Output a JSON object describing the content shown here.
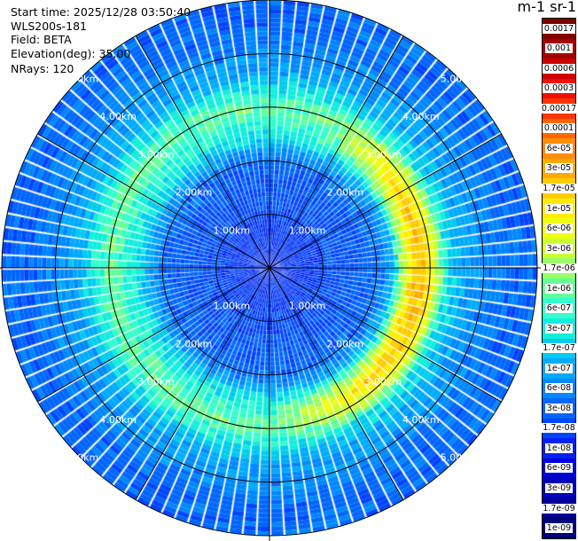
{
  "info": {
    "start_time": "Start time: 2025/12/28 03:50:40",
    "instrument": "WLS200s-181",
    "field": "Field: BETA",
    "elevation": "Elevation(deg): 35.00",
    "nrays": "NRays: 120"
  },
  "colorbar": {
    "title": "m-1 sr-1",
    "levels": [
      {
        "label": "0.0017",
        "color": "#800000"
      },
      {
        "label": "0.001",
        "color": "#a50000"
      },
      {
        "label": "0.0006",
        "color": "#cc0000"
      },
      {
        "label": "0.0003",
        "color": "#ee1100"
      },
      {
        "label": "0.00017",
        "color": "#ff3300"
      },
      {
        "label": "0.0001",
        "color": "#ff6600"
      },
      {
        "label": "6e-05",
        "color": "#ff8c00"
      },
      {
        "label": "3e-05",
        "color": "#ffaa00"
      },
      {
        "label": "1.7e-05",
        "color": "#ffcc00"
      },
      {
        "label": "1e-05",
        "color": "#ffee00"
      },
      {
        "label": "6e-06",
        "color": "#f0ff10"
      },
      {
        "label": "3e-06",
        "color": "#ccff33"
      },
      {
        "label": "1.7e-06",
        "color": "#99ff66"
      },
      {
        "label": "1e-06",
        "color": "#66ff99"
      },
      {
        "label": "6e-07",
        "color": "#33ffcc"
      },
      {
        "label": "3e-07",
        "color": "#11eedd"
      },
      {
        "label": "1.7e-07",
        "color": "#00ccee"
      },
      {
        "label": "1e-07",
        "color": "#00aaff"
      },
      {
        "label": "6e-08",
        "color": "#0088ff"
      },
      {
        "label": "3e-08",
        "color": "#0066ff"
      },
      {
        "label": "1.7e-08",
        "color": "#0044ff"
      },
      {
        "label": "1e-08",
        "color": "#0022ee"
      },
      {
        "label": "6e-09",
        "color": "#0000dd"
      },
      {
        "label": "3e-09",
        "color": "#0000bb"
      },
      {
        "label": "1.7e-09",
        "color": "#000099"
      },
      {
        "label": "1e-09",
        "color": "#000077"
      }
    ]
  },
  "chart_data": {
    "type": "heatmap",
    "projection": "polar-ppi",
    "field": "BETA",
    "units": "m-1 sr-1",
    "elevation_deg": 35.0,
    "n_rays": 120,
    "range_max_km": 5.0,
    "range_rings_km": [
      1,
      2,
      3,
      4,
      5
    ],
    "ring_labels": [
      "1.00km",
      "2.00km",
      "3.00km",
      "4.00km",
      "5.00km"
    ],
    "azimuth_lines_deg": [
      0,
      30,
      60,
      90,
      120,
      150,
      180,
      210,
      240,
      270,
      300,
      330
    ],
    "ring_label_azimuths_deg": [
      45,
      135,
      225,
      315
    ],
    "range_profile": [
      {
        "range_km": 0.0,
        "level": "1e-08"
      },
      {
        "range_km": 1.0,
        "level": "1.7e-08"
      },
      {
        "range_km": 2.0,
        "level": "3e-08"
      },
      {
        "range_km": 2.5,
        "level": "3e-07"
      },
      {
        "range_km": 3.0,
        "level": "1e-06"
      },
      {
        "range_km": 3.6,
        "level": "1e-07"
      },
      {
        "range_km": 4.5,
        "level": "3e-08"
      },
      {
        "range_km": 5.0,
        "level": "3e-08"
      }
    ],
    "enhanced_sector": {
      "azimuth_from_deg": 20,
      "azimuth_to_deg": 180,
      "range_from_km": 2.3,
      "range_to_km": 3.3,
      "peak_level": "1.7e-05"
    },
    "grid": true
  }
}
